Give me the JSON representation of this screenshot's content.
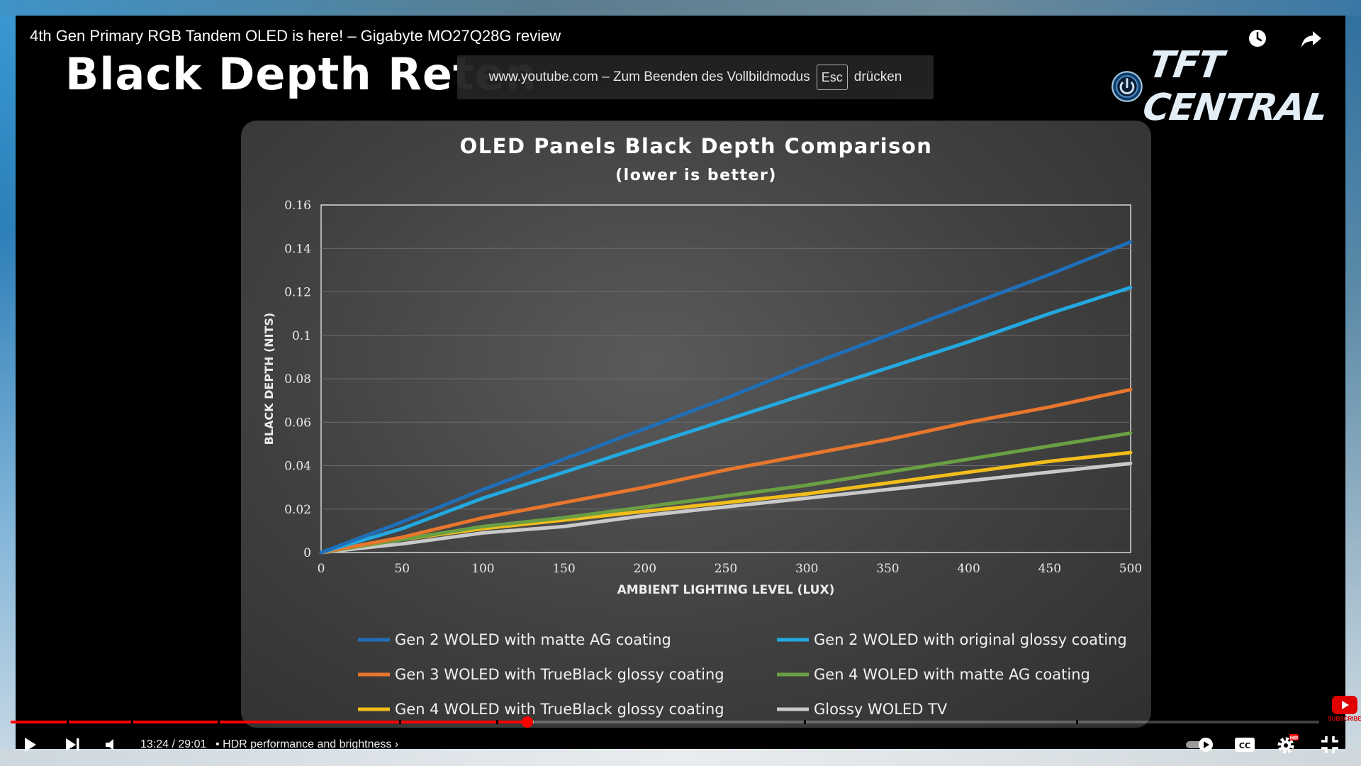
{
  "video": {
    "title": "4th Gen Primary RGB Tandem OLED is here! – Gigabyte MO27Q28G review",
    "slide_title": "Black Depth Reten",
    "logo_text": "TFT CENTRAL",
    "icons": {
      "watch_later": "clock-icon",
      "share": "share-icon"
    }
  },
  "fullscreen_notice": {
    "before": "www.youtube.com – Zum Beenden des Vollbildmodus",
    "key": "Esc",
    "after": "drücken"
  },
  "player": {
    "time": "13:24 / 29:01",
    "chapter": "HDR performance and brightness",
    "chapter_sep": "•",
    "progress": 0.3947,
    "buffered": 0.4,
    "chapter_marks": [
      0.043,
      0.092,
      0.158,
      0.297,
      0.371,
      0.606,
      0.814
    ],
    "subscribe_label": "SUBSCRIBE",
    "hd_badge": "HD",
    "colors": {
      "accent": "#ff0000"
    }
  },
  "chart_data": {
    "type": "line",
    "title": "OLED Panels Black Depth Comparison",
    "subtitle": "(lower is better)",
    "xlabel": "AMBIENT LIGHTING LEVEL (LUX)",
    "ylabel": "BLACK DEPTH (NITS)",
    "xlim": [
      0,
      500
    ],
    "ylim": [
      0,
      0.16
    ],
    "x_ticks": [
      "0",
      "50",
      "100",
      "150",
      "200",
      "250",
      "300",
      "350",
      "400",
      "450",
      "500"
    ],
    "y_ticks": [
      "0",
      "0.02",
      "0.04",
      "0.06",
      "0.08",
      "0.1",
      "0.12",
      "0.14",
      "0.16"
    ],
    "x": [
      0,
      50,
      100,
      150,
      200,
      250,
      300,
      350,
      400,
      450,
      500
    ],
    "series": [
      {
        "name": "Gen 2 WOLED with matte AG coating",
        "color": "#1f6fb8",
        "values": [
          0,
          0.014,
          0.029,
          0.043,
          0.057,
          0.071,
          0.086,
          0.1,
          0.114,
          0.128,
          0.143
        ]
      },
      {
        "name": "Gen 2 WOLED with original glossy coating",
        "color": "#23a9e0",
        "values": [
          0,
          0.011,
          0.025,
          0.037,
          0.049,
          0.061,
          0.073,
          0.085,
          0.097,
          0.11,
          0.122
        ]
      },
      {
        "name": "Gen 3 WOLED with TrueBlack glossy coating",
        "color": "#e8762d",
        "values": [
          0,
          0.007,
          0.016,
          0.023,
          0.03,
          0.038,
          0.045,
          0.052,
          0.06,
          0.067,
          0.075
        ]
      },
      {
        "name": "Gen 4 WOLED with matte AG coating",
        "color": "#6aa043",
        "values": [
          0,
          0.006,
          0.012,
          0.016,
          0.021,
          0.026,
          0.031,
          0.037,
          0.043,
          0.049,
          0.055
        ]
      },
      {
        "name": "Gen 4 WOLED with TrueBlack glossy coating",
        "color": "#f2bd1a",
        "values": [
          0,
          0.006,
          0.011,
          0.015,
          0.019,
          0.023,
          0.027,
          0.032,
          0.037,
          0.042,
          0.046
        ]
      },
      {
        "name": "Glossy WOLED TV",
        "color": "#c9c9c9",
        "values": [
          0,
          0.004,
          0.009,
          0.012,
          0.017,
          0.021,
          0.025,
          0.029,
          0.033,
          0.037,
          0.041
        ]
      }
    ],
    "grid": true,
    "legend_position": "bottom"
  }
}
